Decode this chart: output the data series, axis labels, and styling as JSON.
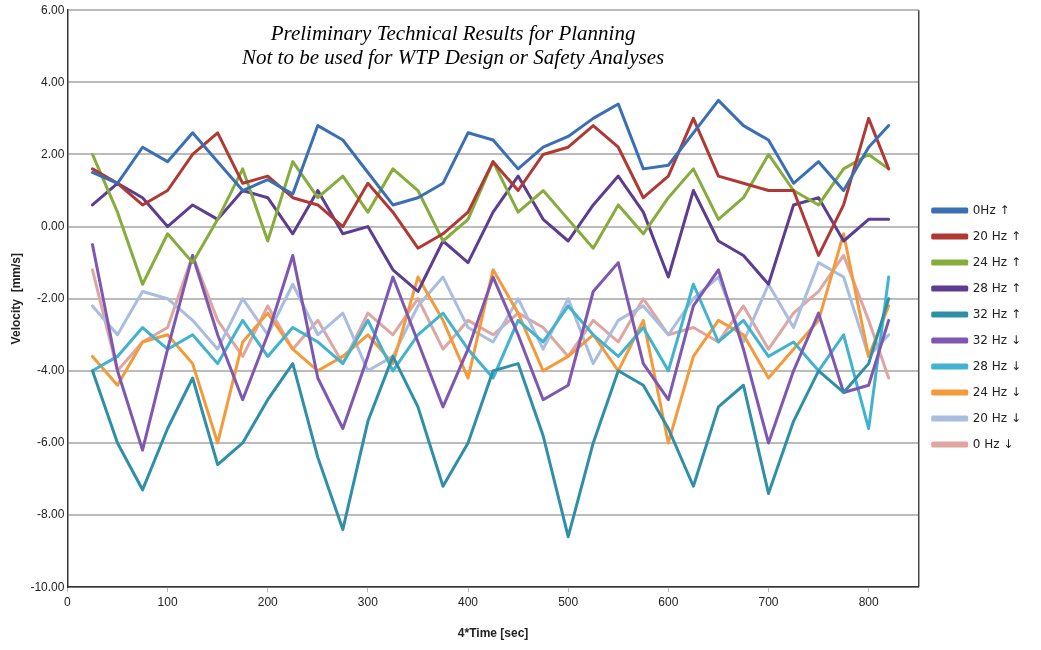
{
  "chart_data": {
    "type": "line",
    "annotations": [
      "Preliminary Technical Results for Planning",
      "Not to be used for WTP Design or Safety Analyses"
    ],
    "xlabel": "4*Time [sec]",
    "ylabel": "Velocity  [mm/s]",
    "x": [
      25,
      50,
      75,
      100,
      125,
      150,
      175,
      200,
      225,
      250,
      275,
      300,
      325,
      350,
      375,
      400,
      425,
      450,
      475,
      500,
      525,
      550,
      575,
      600,
      625,
      650,
      675,
      700,
      725,
      750,
      775,
      800,
      820
    ],
    "xlim": [
      0,
      850
    ],
    "xticks": [
      0,
      100,
      200,
      300,
      400,
      500,
      600,
      700,
      800
    ],
    "ylim": [
      -10,
      6
    ],
    "yticks": [
      {
        "value": -10,
        "label": "-10.00"
      },
      {
        "value": -8,
        "label": "-8.00"
      },
      {
        "value": -6,
        "label": "-6.00"
      },
      {
        "value": -4,
        "label": "-4.00"
      },
      {
        "value": -2,
        "label": "-2.00"
      },
      {
        "value": 0,
        "label": "0.00"
      },
      {
        "value": 2,
        "label": "2.00"
      },
      {
        "value": 4,
        "label": "4.00"
      },
      {
        "value": 6,
        "label": "6.00"
      }
    ],
    "grid": "y",
    "legend": "right",
    "marker": "none",
    "line_style": "solid",
    "series": [
      {
        "name": "0Hz ↑",
        "color": "#3a6fb5",
        "values": [
          1.5,
          1.2,
          2.2,
          1.8,
          2.6,
          1.8,
          1.0,
          1.3,
          0.9,
          2.8,
          2.4,
          1.5,
          0.6,
          0.8,
          1.2,
          2.6,
          2.4,
          1.6,
          2.2,
          2.5,
          3.0,
          3.4,
          1.6,
          1.7,
          2.6,
          3.5,
          2.8,
          2.4,
          1.2,
          1.8,
          1.0,
          2.2,
          2.8
        ]
      },
      {
        "name": "20 Hz ↑",
        "color": "#b03a33",
        "values": [
          1.6,
          1.2,
          0.6,
          1.0,
          2.0,
          2.6,
          1.2,
          1.4,
          0.8,
          0.6,
          0.0,
          1.2,
          0.4,
          -0.6,
          -0.2,
          0.4,
          1.8,
          1.0,
          2.0,
          2.2,
          2.8,
          2.2,
          0.8,
          1.4,
          3.0,
          1.4,
          1.2,
          1.0,
          1.0,
          -0.8,
          0.6,
          3.0,
          1.6
        ]
      },
      {
        "name": "24 Hz ↑",
        "color": "#86ad3c",
        "values": [
          2.0,
          0.4,
          -1.6,
          -0.2,
          -1.0,
          0.2,
          1.6,
          -0.4,
          1.8,
          0.8,
          1.4,
          0.4,
          1.6,
          1.0,
          -0.4,
          0.2,
          1.8,
          0.4,
          1.0,
          0.2,
          -0.6,
          0.6,
          -0.2,
          0.8,
          1.6,
          0.2,
          0.8,
          2.0,
          1.0,
          0.6,
          1.6,
          2.0,
          1.6
        ]
      },
      {
        "name": "28 Hz ↑",
        "color": "#5c3d8f",
        "values": [
          0.6,
          1.2,
          0.8,
          0.0,
          0.6,
          0.2,
          1.0,
          0.8,
          -0.2,
          1.0,
          -0.2,
          0.0,
          -1.2,
          -1.8,
          -0.4,
          -1.0,
          0.4,
          1.4,
          0.2,
          -0.4,
          0.6,
          1.4,
          0.4,
          -1.4,
          1.0,
          -0.4,
          -0.8,
          -1.6,
          0.6,
          0.8,
          -0.4,
          0.2,
          0.2
        ]
      },
      {
        "name": "32 Hz ↑",
        "color": "#2f8fa8",
        "values": [
          -4.0,
          -6.0,
          -7.3,
          -5.6,
          -4.2,
          -6.6,
          -6.0,
          -4.8,
          -3.8,
          -6.4,
          -8.4,
          -5.4,
          -3.6,
          -5.0,
          -7.2,
          -6.0,
          -4.0,
          -3.8,
          -5.8,
          -8.6,
          -6.0,
          -4.0,
          -4.4,
          -5.6,
          -7.2,
          -5.0,
          -4.4,
          -7.4,
          -5.4,
          -4.0,
          -4.6,
          -3.8,
          -2.0
        ]
      },
      {
        "name": "32 Hz ↓",
        "color": "#7e57b0",
        "values": [
          -0.5,
          -4.0,
          -6.2,
          -3.4,
          -0.8,
          -3.0,
          -4.8,
          -3.0,
          -0.8,
          -4.2,
          -5.6,
          -3.6,
          -1.4,
          -3.2,
          -5.0,
          -3.4,
          -1.4,
          -3.0,
          -4.8,
          -4.4,
          -1.8,
          -1.0,
          -3.8,
          -4.8,
          -2.2,
          -1.2,
          -3.4,
          -6.0,
          -4.0,
          -2.4,
          -4.6,
          -4.4,
          -2.6
        ]
      },
      {
        "name": "28 Hz ↓",
        "color": "#41b3cf",
        "values": [
          -4.0,
          -3.6,
          -2.8,
          -3.4,
          -3.0,
          -3.8,
          -2.6,
          -3.6,
          -2.8,
          -3.2,
          -3.8,
          -2.6,
          -4.0,
          -3.0,
          -2.4,
          -3.4,
          -4.2,
          -2.6,
          -3.2,
          -2.2,
          -3.0,
          -3.6,
          -2.8,
          -4.0,
          -1.6,
          -3.2,
          -2.6,
          -3.6,
          -3.2,
          -4.0,
          -3.0,
          -5.6,
          -1.4
        ]
      },
      {
        "name": "24 Hz ↓",
        "color": "#f59a3b",
        "values": [
          -3.6,
          -4.4,
          -3.2,
          -3.0,
          -3.8,
          -6.0,
          -3.2,
          -2.4,
          -3.4,
          -4.0,
          -3.6,
          -3.0,
          -3.8,
          -1.4,
          -2.6,
          -4.2,
          -1.2,
          -2.4,
          -4.0,
          -3.6,
          -3.0,
          -4.0,
          -2.6,
          -6.0,
          -3.6,
          -2.6,
          -3.0,
          -4.2,
          -3.4,
          -2.6,
          -0.2,
          -3.6,
          -2.2
        ]
      },
      {
        "name": "20 Hz ↓",
        "color": "#a9bde0",
        "values": [
          -2.2,
          -3.0,
          -1.8,
          -2.0,
          -2.6,
          -3.4,
          -2.0,
          -3.0,
          -1.6,
          -3.0,
          -2.4,
          -4.0,
          -3.6,
          -2.2,
          -1.4,
          -2.8,
          -3.2,
          -2.0,
          -3.4,
          -2.0,
          -3.8,
          -2.6,
          -2.2,
          -3.0,
          -2.0,
          -1.4,
          -3.2,
          -1.6,
          -2.8,
          -1.0,
          -1.4,
          -3.6,
          -3.0
        ]
      },
      {
        "name": "0 Hz ↓",
        "color": "#dfa5a0",
        "values": [
          -1.2,
          -4.0,
          -3.2,
          -2.8,
          -0.8,
          -2.6,
          -3.6,
          -2.2,
          -3.4,
          -2.6,
          -3.8,
          -2.4,
          -3.0,
          -2.0,
          -3.4,
          -2.6,
          -3.0,
          -2.4,
          -2.8,
          -3.6,
          -2.6,
          -3.2,
          -2.0,
          -3.0,
          -2.8,
          -3.2,
          -2.2,
          -3.4,
          -2.4,
          -1.8,
          -0.8,
          -2.6,
          -4.2
        ]
      }
    ]
  }
}
